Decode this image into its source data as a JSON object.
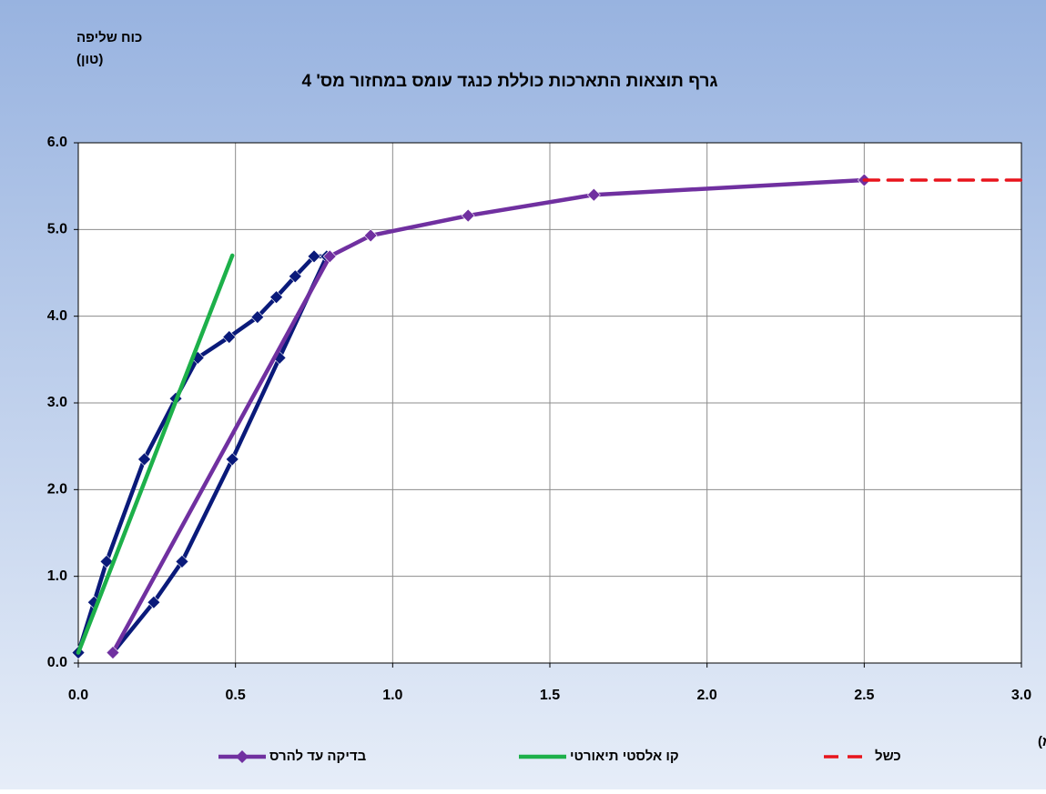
{
  "chart_data": {
    "type": "line",
    "title": "גרף תוצאות התארכות כוללת כנגד עומס במחזור מס' 4",
    "y_label": [
      "כוח שליפה",
      "(טון)"
    ],
    "x_label": "התארכות כוללת (מ\"מ)",
    "xlim": [
      0,
      3
    ],
    "ylim": [
      0,
      6
    ],
    "xticks": [
      {
        "value": 0,
        "label": "0.0"
      },
      {
        "value": 0.5,
        "label": "0.5"
      },
      {
        "value": 1,
        "label": "1.0"
      },
      {
        "value": 1.5,
        "label": "1.5"
      },
      {
        "value": 2,
        "label": "2.0"
      },
      {
        "value": 2.5,
        "label": "2.5"
      },
      {
        "value": 3,
        "label": "3.0"
      }
    ],
    "yticks": [
      {
        "value": 0,
        "label": "0.0"
      },
      {
        "value": 1,
        "label": "1.0"
      },
      {
        "value": 2,
        "label": "2.0"
      },
      {
        "value": 3,
        "label": "3.0"
      },
      {
        "value": 4,
        "label": "4.0"
      },
      {
        "value": 5,
        "label": "5.0"
      },
      {
        "value": 6,
        "label": "6.0"
      }
    ],
    "grid": true,
    "series": [
      {
        "color": "#0a1a7a",
        "markers": true,
        "dashed": false,
        "x": [
          0,
          0.05,
          0.09,
          0.21,
          0.31,
          0.38,
          0.48,
          0.57,
          0.63,
          0.69,
          0.75,
          0.79,
          0.64,
          0.49,
          0.33,
          0.24,
          0.11
        ],
        "values": [
          0.12,
          0.7,
          1.17,
          2.35,
          3.05,
          3.52,
          3.76,
          3.99,
          4.22,
          4.46,
          4.69,
          4.69,
          3.52,
          2.35,
          1.17,
          0.7,
          0.12
        ]
      },
      {
        "name": "בדיקה עד להרס",
        "color": "#7030a0",
        "markers": true,
        "dashed": false,
        "x": [
          0.11,
          0.8,
          0.93,
          1.24,
          1.64,
          2.5
        ],
        "values": [
          0.12,
          4.69,
          4.93,
          5.16,
          5.4,
          5.57
        ]
      },
      {
        "name": "קו אלסטי תיאורטי",
        "color": "#1db04a",
        "markers": false,
        "dashed": false,
        "x": [
          0,
          0.49
        ],
        "values": [
          0.12,
          4.7
        ]
      },
      {
        "name": "כשל",
        "color": "#e8141c",
        "markers": false,
        "dashed": true,
        "x": [
          2.5,
          3
        ],
        "values": [
          5.57,
          5.57
        ]
      }
    ]
  }
}
